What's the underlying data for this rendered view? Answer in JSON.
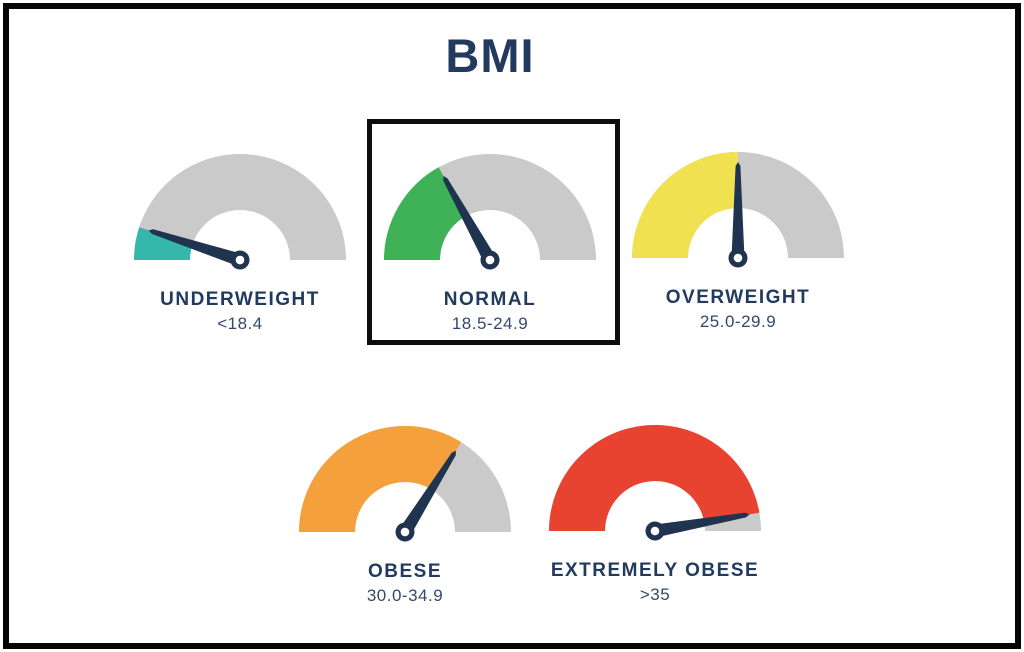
{
  "page": {
    "background": "#ffffff",
    "frame_color": "#050505"
  },
  "title": "BMI",
  "colors": {
    "title_navy": "#223a5e",
    "label_navy": "#223a5e",
    "range_slate": "#33496b",
    "track_gray": "#cacaca",
    "needle_navy": "#20344f",
    "pivot_hole_white": "#ffffff",
    "highlight_border": "#0d0d0d"
  },
  "chart_data": {
    "type": "gauge",
    "title": "BMI",
    "subtitle": "",
    "layout": "five semicircular gauges; top row: underweight, normal (outlined with black box), overweight; bottom row: obese, extremely obese",
    "legend": "none",
    "gauges": [
      {
        "label": "UNDERWEIGHT",
        "range": "<18.4",
        "color": "#36b7ac",
        "sweep_deg": 18,
        "highlighted": false
      },
      {
        "label": "NORMAL",
        "range": "18.5-24.9",
        "color": "#3fb258",
        "sweep_deg": 61,
        "highlighted": true
      },
      {
        "label": "OVERWEIGHT",
        "range": "25.0-29.9",
        "color": "#f0e150",
        "sweep_deg": 90,
        "highlighted": false
      },
      {
        "label": "OBESE",
        "range": "30.0-34.9",
        "color": "#f4a03c",
        "sweep_deg": 122,
        "highlighted": false
      },
      {
        "label": "EXTREMELY OBESE",
        "range": ">35",
        "color": "#e84230",
        "sweep_deg": 170,
        "highlighted": false
      }
    ]
  }
}
